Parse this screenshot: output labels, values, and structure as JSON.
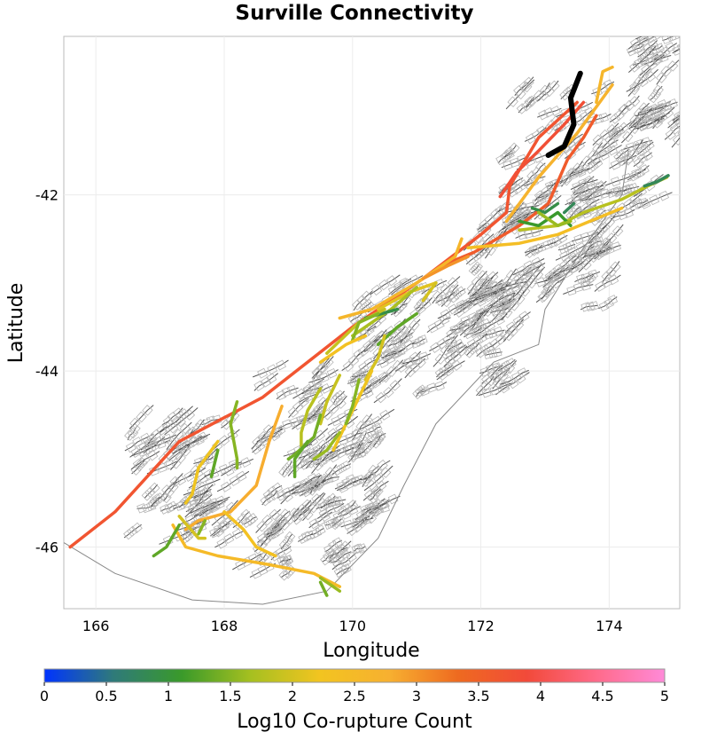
{
  "chart_data": {
    "type": "map",
    "title": "Surville Connectivity",
    "xlabel": "Longitude",
    "ylabel": "Latitude",
    "xlim": [
      165.5,
      175.1
    ],
    "ylim": [
      -46.7,
      -40.2
    ],
    "x_ticks": [
      166,
      168,
      170,
      172,
      174
    ],
    "y_ticks": [
      -42,
      -44,
      -46
    ],
    "x_tick_labels": [
      "166",
      "168",
      "170",
      "172",
      "174"
    ],
    "y_tick_labels": [
      "-42",
      "-44",
      "-46"
    ],
    "grid": true,
    "source_fault": {
      "name": "Surville",
      "color": "#000000",
      "path": [
        [
          173.55,
          -40.62
        ],
        [
          173.4,
          -40.9
        ],
        [
          173.45,
          -41.2
        ],
        [
          173.3,
          -41.45
        ],
        [
          173.05,
          -41.55
        ]
      ]
    },
    "colorbar": {
      "label": "Log10 Co-rupture Count",
      "min": 0,
      "max": 5,
      "ticks": [
        0,
        0.5,
        1,
        1.5,
        2,
        2.5,
        3,
        3.5,
        4,
        4.5,
        5
      ],
      "tick_labels": [
        "0",
        "0.5",
        "1",
        "1.5",
        "2",
        "2.5",
        "3",
        "3.5",
        "4",
        "4.5",
        "5"
      ],
      "colors": [
        "#0033ff",
        "#2f7a7a",
        "#3a9a2a",
        "#a6c020",
        "#f2c420",
        "#f7b030",
        "#ee6a20",
        "#f24a3a",
        "#ff6a8a",
        "#ff8ad8"
      ]
    },
    "connected_faults": [
      {
        "value": 3.7,
        "path": [
          [
            165.6,
            -46.0
          ],
          [
            166.3,
            -45.6
          ],
          [
            167.3,
            -44.8
          ],
          [
            168.6,
            -44.3
          ],
          [
            170.0,
            -43.5
          ],
          [
            171.1,
            -42.95
          ],
          [
            172.0,
            -42.45
          ],
          [
            172.4,
            -42.2
          ],
          [
            172.45,
            -41.9
          ],
          [
            172.9,
            -41.35
          ],
          [
            173.5,
            -40.95
          ]
        ]
      },
      {
        "value": 3.8,
        "path": [
          [
            172.3,
            -42.02
          ],
          [
            172.55,
            -41.75
          ],
          [
            172.9,
            -41.5
          ],
          [
            173.3,
            -41.2
          ],
          [
            173.6,
            -40.95
          ]
        ]
      },
      {
        "value": 3.6,
        "path": [
          [
            171.4,
            -42.8
          ],
          [
            171.9,
            -42.65
          ],
          [
            172.6,
            -42.35
          ],
          [
            173.05,
            -42.1
          ],
          [
            173.35,
            -41.6
          ],
          [
            173.6,
            -41.35
          ],
          [
            173.8,
            -41.1
          ]
        ]
      },
      {
        "value": 2.7,
        "path": [
          [
            172.4,
            -42.3
          ],
          [
            172.9,
            -41.8
          ],
          [
            173.5,
            -41.3
          ],
          [
            174.05,
            -40.75
          ]
        ]
      },
      {
        "value": 2.6,
        "path": [
          [
            173.8,
            -40.95
          ],
          [
            173.9,
            -40.6
          ],
          [
            174.05,
            -40.55
          ]
        ]
      },
      {
        "value": 1.8,
        "path": [
          [
            172.6,
            -42.4
          ],
          [
            173.2,
            -42.35
          ],
          [
            173.6,
            -42.2
          ],
          [
            174.2,
            -42.05
          ],
          [
            174.6,
            -41.9
          ],
          [
            174.9,
            -41.8
          ]
        ]
      },
      {
        "value": 0.8,
        "path": [
          [
            174.55,
            -41.9
          ],
          [
            174.75,
            -41.85
          ],
          [
            174.92,
            -41.78
          ]
        ]
      },
      {
        "value": 2.4,
        "path": [
          [
            171.8,
            -42.6
          ],
          [
            172.6,
            -42.55
          ],
          [
            173.2,
            -42.45
          ],
          [
            173.7,
            -42.3
          ],
          [
            174.2,
            -42.15
          ]
        ]
      },
      {
        "value": 1.1,
        "path": [
          [
            172.6,
            -42.3
          ],
          [
            172.9,
            -42.35
          ],
          [
            173.2,
            -42.2
          ],
          [
            173.4,
            -42.35
          ]
        ]
      },
      {
        "value": 0.9,
        "path": [
          [
            172.8,
            -42.15
          ],
          [
            173.0,
            -42.2
          ],
          [
            173.2,
            -42.1
          ]
        ]
      },
      {
        "value": 0.8,
        "path": [
          [
            173.3,
            -42.2
          ],
          [
            173.45,
            -42.1
          ]
        ]
      },
      {
        "value": 1.6,
        "path": [
          [
            172.9,
            -42.2
          ],
          [
            173.2,
            -42.35
          ],
          [
            173.4,
            -42.3
          ]
        ]
      },
      {
        "value": 2.6,
        "path": [
          [
            169.8,
            -43.4
          ],
          [
            170.3,
            -43.3
          ],
          [
            171.0,
            -43.0
          ],
          [
            171.6,
            -42.7
          ],
          [
            171.7,
            -42.5
          ]
        ]
      },
      {
        "value": 3.0,
        "path": [
          [
            171.1,
            -42.95
          ],
          [
            171.5,
            -42.8
          ],
          [
            171.8,
            -42.7
          ]
        ]
      },
      {
        "value": 2.1,
        "path": [
          [
            170.4,
            -43.3
          ],
          [
            170.9,
            -43.1
          ],
          [
            171.3,
            -43.0
          ]
        ]
      },
      {
        "value": 1.7,
        "path": [
          [
            170.0,
            -43.6
          ],
          [
            170.6,
            -43.3
          ],
          [
            171.0,
            -43.05
          ]
        ]
      },
      {
        "value": 0.9,
        "path": [
          [
            170.2,
            -43.4
          ],
          [
            170.7,
            -43.3
          ]
        ]
      },
      {
        "value": 1.3,
        "path": [
          [
            170.4,
            -43.7
          ],
          [
            170.7,
            -43.5
          ],
          [
            171.0,
            -43.35
          ]
        ]
      },
      {
        "value": 2.0,
        "path": [
          [
            171.1,
            -43.2
          ],
          [
            171.3,
            -43.0
          ]
        ]
      },
      {
        "value": 1.9,
        "path": [
          [
            169.6,
            -43.8
          ],
          [
            170.1,
            -43.45
          ],
          [
            170.5,
            -43.3
          ]
        ]
      },
      {
        "value": 1.5,
        "path": [
          [
            170.0,
            -43.65
          ],
          [
            170.1,
            -43.45
          ],
          [
            170.4,
            -43.35
          ]
        ]
      },
      {
        "value": 2.3,
        "path": [
          [
            169.5,
            -43.9
          ],
          [
            169.9,
            -43.7
          ],
          [
            170.2,
            -43.6
          ]
        ]
      },
      {
        "value": 2.0,
        "path": [
          [
            170.5,
            -43.6
          ],
          [
            170.4,
            -43.85
          ],
          [
            170.2,
            -44.1
          ]
        ]
      },
      {
        "value": 2.2,
        "path": [
          [
            170.3,
            -44.0
          ],
          [
            170.1,
            -44.3
          ],
          [
            169.9,
            -44.6
          ],
          [
            169.7,
            -44.9
          ]
        ]
      },
      {
        "value": 1.9,
        "path": [
          [
            169.8,
            -44.05
          ],
          [
            169.6,
            -44.35
          ],
          [
            169.5,
            -44.6
          ]
        ]
      },
      {
        "value": 1.8,
        "path": [
          [
            169.5,
            -44.2
          ],
          [
            169.3,
            -44.45
          ],
          [
            169.2,
            -44.7
          ],
          [
            169.2,
            -44.85
          ]
        ]
      },
      {
        "value": 1.4,
        "path": [
          [
            169.5,
            -44.5
          ],
          [
            169.4,
            -44.75
          ],
          [
            169.1,
            -44.95
          ],
          [
            169.0,
            -45.0
          ]
        ]
      },
      {
        "value": 1.3,
        "path": [
          [
            169.3,
            -44.8
          ],
          [
            169.1,
            -45.0
          ],
          [
            169.1,
            -45.2
          ]
        ]
      },
      {
        "value": 1.6,
        "path": [
          [
            169.8,
            -44.7
          ],
          [
            169.6,
            -44.9
          ],
          [
            169.4,
            -45.0
          ]
        ]
      },
      {
        "value": 1.5,
        "path": [
          [
            170.1,
            -44.1
          ],
          [
            170.0,
            -44.4
          ],
          [
            169.9,
            -44.6
          ]
        ]
      },
      {
        "value": 2.8,
        "path": [
          [
            168.9,
            -44.4
          ],
          [
            168.7,
            -44.8
          ],
          [
            168.5,
            -45.3
          ],
          [
            168.1,
            -45.6
          ],
          [
            167.6,
            -45.7
          ],
          [
            167.4,
            -45.8
          ]
        ]
      },
      {
        "value": 1.5,
        "path": [
          [
            168.2,
            -44.35
          ],
          [
            168.1,
            -44.6
          ],
          [
            168.2,
            -45.0
          ],
          [
            168.2,
            -45.1
          ]
        ]
      },
      {
        "value": 2.2,
        "path": [
          [
            167.9,
            -44.8
          ],
          [
            167.6,
            -45.1
          ],
          [
            167.5,
            -45.4
          ],
          [
            167.4,
            -45.5
          ]
        ]
      },
      {
        "value": 1.3,
        "path": [
          [
            167.9,
            -44.9
          ],
          [
            167.8,
            -45.2
          ]
        ]
      },
      {
        "value": 2.5,
        "path": [
          [
            167.2,
            -45.75
          ],
          [
            167.4,
            -46.0
          ],
          [
            167.9,
            -46.1
          ],
          [
            168.7,
            -46.2
          ],
          [
            169.4,
            -46.3
          ],
          [
            169.8,
            -46.45
          ]
        ]
      },
      {
        "value": 2.3,
        "path": [
          [
            168.0,
            -45.6
          ],
          [
            168.3,
            -45.8
          ],
          [
            168.5,
            -46.0
          ],
          [
            168.8,
            -46.1
          ]
        ]
      },
      {
        "value": 2.0,
        "path": [
          [
            167.3,
            -45.65
          ],
          [
            167.6,
            -45.9
          ],
          [
            167.7,
            -45.9
          ]
        ]
      },
      {
        "value": 1.3,
        "path": [
          [
            167.3,
            -45.75
          ],
          [
            167.1,
            -46.0
          ],
          [
            166.9,
            -46.1
          ]
        ]
      },
      {
        "value": 1.6,
        "path": [
          [
            169.5,
            -46.35
          ],
          [
            169.7,
            -46.45
          ],
          [
            169.8,
            -46.5
          ]
        ]
      },
      {
        "value": 1.4,
        "path": [
          [
            169.5,
            -46.4
          ],
          [
            169.6,
            -46.55
          ]
        ]
      },
      {
        "value": 1.5,
        "path": [
          [
            167.7,
            -45.7
          ],
          [
            167.6,
            -45.85
          ]
        ]
      }
    ]
  }
}
